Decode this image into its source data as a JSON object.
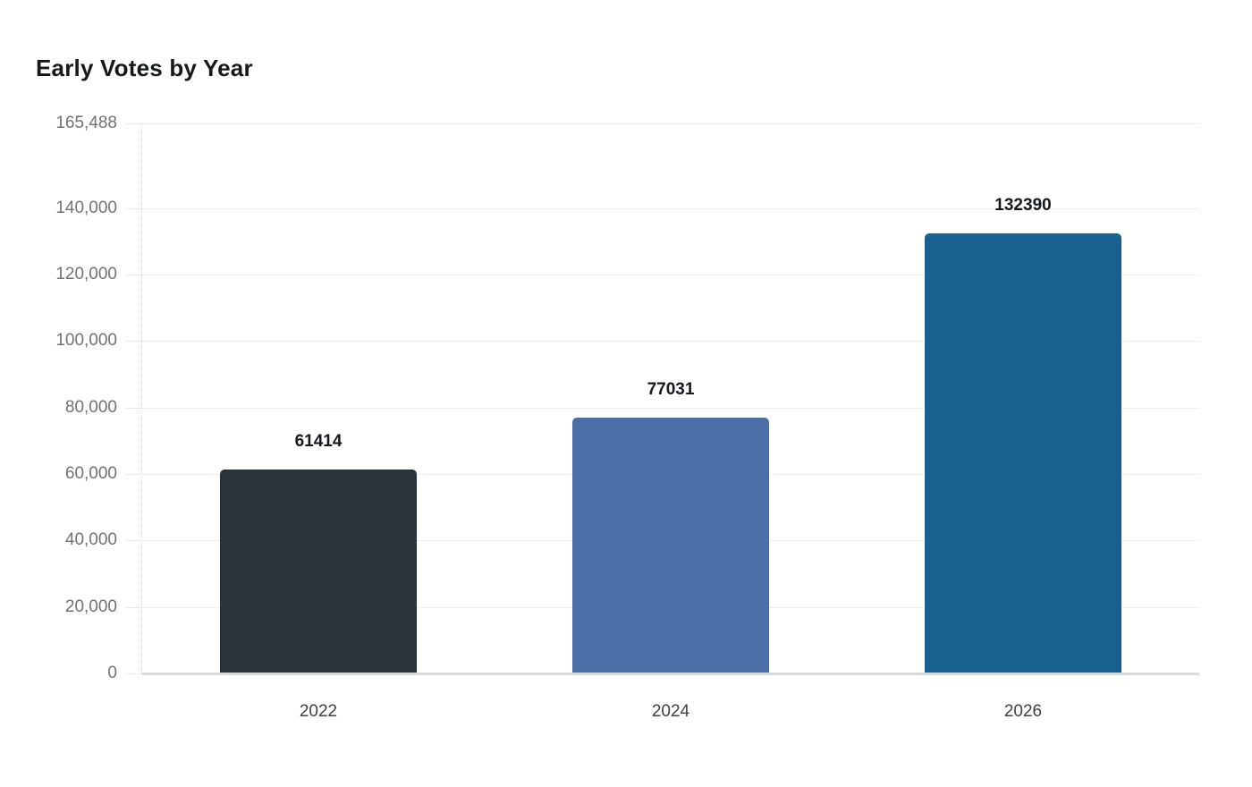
{
  "chart_data": {
    "type": "bar",
    "title": "Early Votes by Year",
    "categories": [
      "2022",
      "2024",
      "2026"
    ],
    "values": [
      61414,
      77031,
      132390
    ],
    "value_labels": [
      "61414",
      "77031",
      "132390"
    ],
    "bar_colors": [
      "#2b333a",
      "#4a6fa6",
      "#17618e"
    ],
    "y_ticks": [
      0,
      20000,
      40000,
      60000,
      80000,
      100000,
      120000,
      140000,
      165488
    ],
    "y_tick_labels": [
      "0",
      "20,000",
      "40,000",
      "60,000",
      "80,000",
      "100,000",
      "120,000",
      "140,000",
      "165,488"
    ],
    "ylim": [
      0,
      165488
    ],
    "xlabel": "",
    "ylabel": "",
    "grid": true,
    "legend": false,
    "legend_position": "none"
  },
  "colors": {
    "background": "#ffffff",
    "gridline": "#efefef",
    "baseline": "#d9dcde",
    "axis_dotted_border": "#d6d6d6",
    "y_tick_text": "#6e7378",
    "x_tick_text": "#3c4247",
    "value_label_text": "#15191d",
    "title_text": "#16191c"
  }
}
